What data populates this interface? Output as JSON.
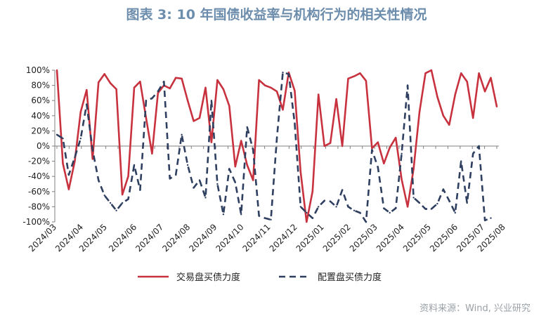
{
  "title": "图表 3:  10 年国债收益率与机构行为的相关性情况",
  "source": "资料来源：Wind, 兴业研究",
  "chart_data": {
    "type": "line",
    "title": "图表 3:  10 年国债收益率与机构行为的相关性情况",
    "ylim": [
      -100,
      100
    ],
    "y_ticks": [
      "100%",
      "80%",
      "60%",
      "40%",
      "20%",
      "0%",
      "-20%",
      "-40%",
      "-60%",
      "-80%",
      "-100%"
    ],
    "x_ticks": [
      "2024/03",
      "2024/04",
      "2024/05",
      "2024/06",
      "2024/07",
      "2024/08",
      "2024/09",
      "2024/10",
      "2024/11",
      "2024/12",
      "2025/01",
      "2025/02",
      "2025/03",
      "2025/04",
      "2025/05",
      "2025/06",
      "2025/07",
      "2025/08"
    ],
    "x_tick_positions": [
      0,
      4.5,
      8.5,
      13.5,
      18,
      22.5,
      27,
      31.5,
      36,
      40.5,
      45,
      49.5,
      54,
      58.5,
      63,
      67.5,
      72,
      75.5
    ],
    "grid": false,
    "legend": "bottom",
    "series": [
      {
        "name": "交易盘买债力度",
        "color": "#c8323f",
        "dash": false,
        "values": [
          100,
          -23,
          -57,
          -20,
          45,
          74,
          -17,
          84,
          95,
          83,
          75,
          -64,
          -40,
          77,
          85,
          37,
          -10,
          70,
          80,
          76,
          90,
          89,
          60,
          33,
          37,
          77,
          5,
          87,
          75,
          53,
          -27,
          7,
          -25,
          -45,
          87,
          80,
          77,
          72,
          48,
          97,
          73,
          -34,
          -100,
          -60,
          68,
          0,
          4,
          62,
          0,
          89,
          92,
          96,
          86,
          -3,
          5,
          -23,
          -2,
          11,
          -44,
          -80,
          -30,
          45,
          96,
          100,
          65,
          40,
          28,
          68,
          96,
          85,
          37,
          96,
          72,
          90,
          52
        ]
      },
      {
        "name": "配置盘买债力度",
        "color": "#2f3f60",
        "dash": true,
        "values": [
          15,
          10,
          -38,
          -15,
          10,
          55,
          -5,
          -45,
          -65,
          -75,
          -85,
          -75,
          -70,
          -25,
          -58,
          60,
          63,
          72,
          85,
          -43,
          -38,
          15,
          -25,
          -55,
          -45,
          -68,
          60,
          -50,
          -90,
          -30,
          -48,
          -90,
          25,
          -5,
          -92,
          -95,
          -97,
          10,
          97,
          95,
          30,
          -80,
          -88,
          -95,
          -80,
          -72,
          -73,
          -80,
          -58,
          -80,
          -85,
          -88,
          -100,
          -5,
          -28,
          -82,
          -88,
          -82,
          -10,
          80,
          -68,
          -75,
          -83,
          -83,
          -76,
          -57,
          -72,
          -88,
          -20,
          -75,
          -10,
          0,
          -98,
          -95
        ]
      }
    ]
  }
}
